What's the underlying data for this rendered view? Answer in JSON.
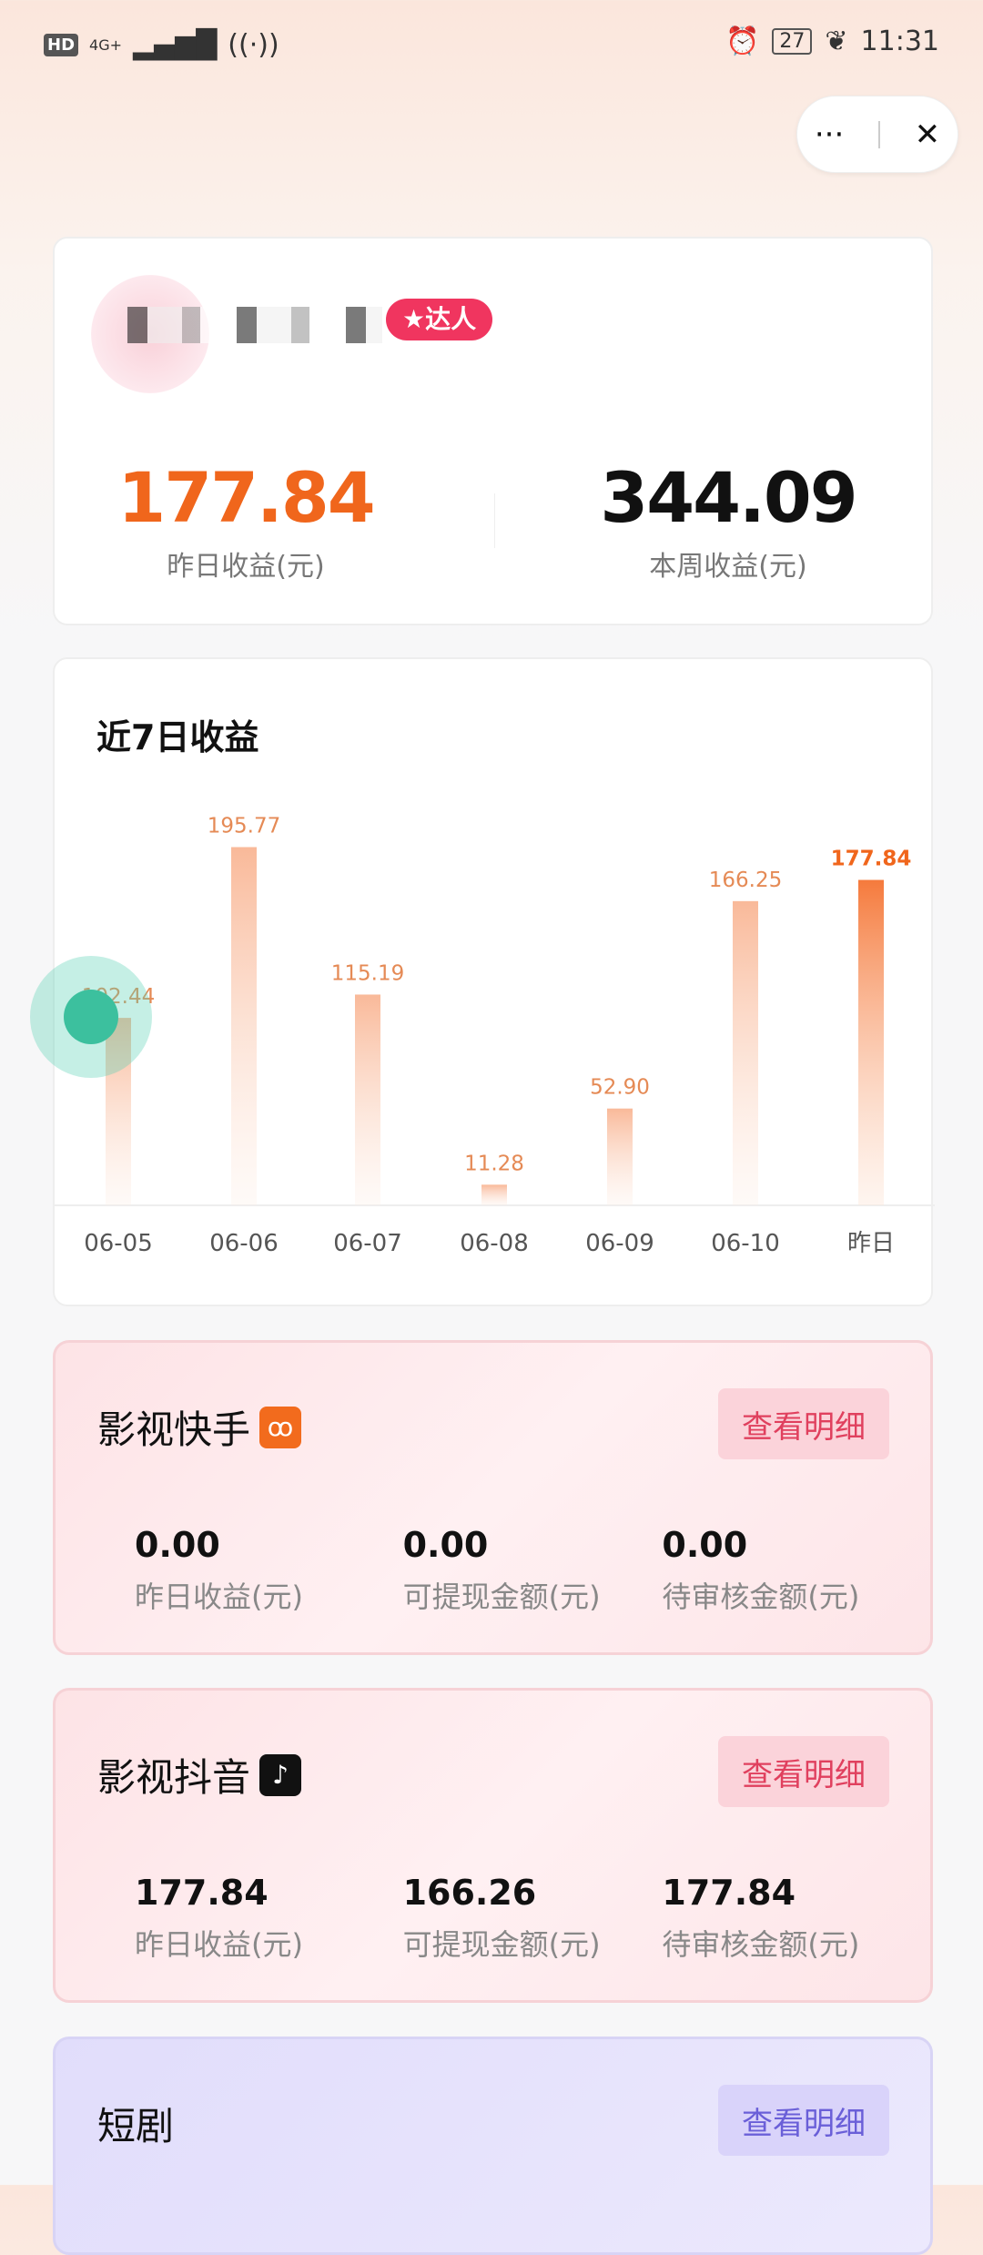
{
  "status_bar": {
    "left": [
      "HD",
      "4G+",
      "signal-icon",
      "hotspot-icon"
    ],
    "battery": "27",
    "time": "11:31"
  },
  "capsule": {
    "more": "···",
    "close": "✕"
  },
  "profile": {
    "badge": "达人",
    "yesterday_value": "177.84",
    "yesterday_label": "昨日收益(元)",
    "week_value": "344.09",
    "week_label": "本周收益(元)",
    "accent": "#f0661c"
  },
  "chart_data": {
    "type": "bar",
    "title": "近7日收益",
    "categories": [
      "06-05",
      "06-06",
      "06-07",
      "06-08",
      "06-09",
      "06-10",
      "昨日"
    ],
    "values": [
      102.44,
      195.77,
      115.19,
      11.28,
      52.9,
      166.25,
      177.84
    ],
    "labels": [
      "102.44",
      "195.77",
      "115.19",
      "11.28",
      "52.90",
      "166.25",
      "177.84"
    ],
    "highlight_index": 6,
    "colors": {
      "bar": "#f9b999",
      "highlight": "#f57a3c"
    }
  },
  "platforms": [
    {
      "name": "影视快手",
      "icon": "kuaishou-icon",
      "button": "查看明细",
      "stats": [
        {
          "value": "0.00",
          "label": "昨日收益(元)"
        },
        {
          "value": "0.00",
          "label": "可提现金额(元)"
        },
        {
          "value": "0.00",
          "label": "待审核金额(元)"
        }
      ]
    },
    {
      "name": "影视抖音",
      "icon": "douyin-icon",
      "button": "查看明细",
      "stats": [
        {
          "value": "177.84",
          "label": "昨日收益(元)"
        },
        {
          "value": "166.26",
          "label": "可提现金额(元)"
        },
        {
          "value": "177.84",
          "label": "待审核金额(元)"
        }
      ]
    },
    {
      "name": "短剧",
      "button": "查看明细"
    }
  ]
}
